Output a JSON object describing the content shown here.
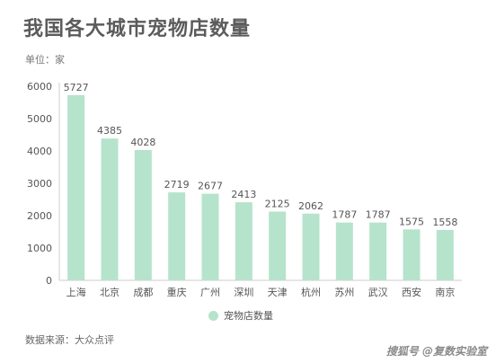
{
  "title": "我国各大城市宠物店数量",
  "unit_label": "单位：家",
  "source": "数据来源：大众点评",
  "watermark": "搜狐号 @复数实验室",
  "colors": {
    "bar": "#b6e3cc",
    "axis": "#cccccc",
    "text": "#555555"
  },
  "chart_data": {
    "type": "bar",
    "categories": [
      "上海",
      "北京",
      "成都",
      "重庆",
      "广州",
      "深圳",
      "天津",
      "杭州",
      "苏州",
      "武汉",
      "西安",
      "南京"
    ],
    "series": [
      {
        "name": "宠物店数量",
        "values": [
          5727,
          4385,
          4028,
          2719,
          2677,
          2413,
          2125,
          2062,
          1787,
          1787,
          1575,
          1558
        ]
      }
    ],
    "yticks": [
      0,
      1000,
      2000,
      3000,
      4000,
      5000,
      6000
    ],
    "ylim": [
      0,
      6000
    ],
    "grid": false,
    "legend_position": "bottom-center"
  }
}
